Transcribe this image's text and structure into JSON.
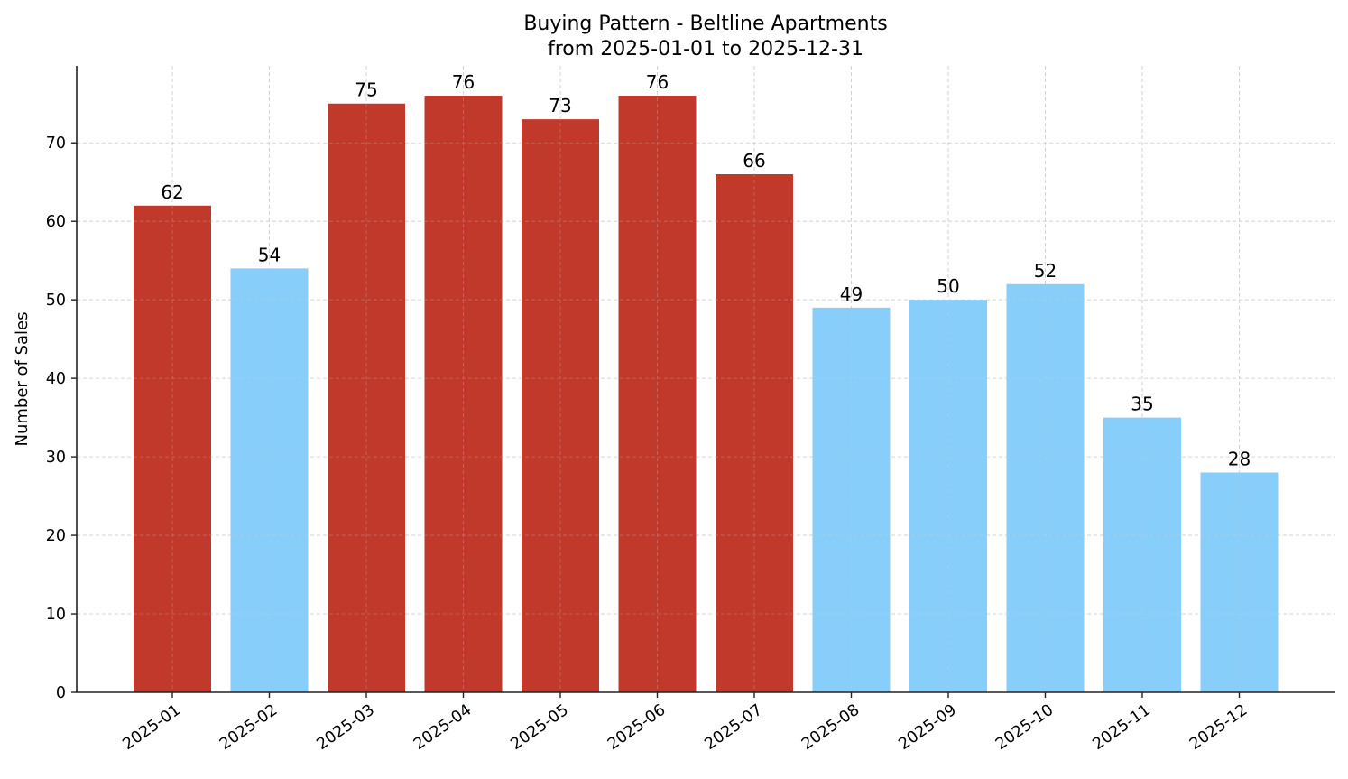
{
  "chart_data": {
    "type": "bar",
    "title": "Buying Pattern - Beltline Apartments",
    "subtitle": "from 2025-01-01 to 2025-12-31",
    "xlabel": "",
    "ylabel": "Number of Sales",
    "categories": [
      "2025-01",
      "2025-02",
      "2025-03",
      "2025-04",
      "2025-05",
      "2025-06",
      "2025-07",
      "2025-08",
      "2025-09",
      "2025-10",
      "2025-11",
      "2025-12"
    ],
    "values": [
      62,
      54,
      75,
      76,
      73,
      76,
      66,
      49,
      50,
      52,
      35,
      28
    ],
    "bar_colors": [
      "#c0392b",
      "#87cefa",
      "#c0392b",
      "#c0392b",
      "#c0392b",
      "#c0392b",
      "#c0392b",
      "#87cefa",
      "#87cefa",
      "#87cefa",
      "#87cefa",
      "#87cefa"
    ],
    "color_meaning": {
      "high": "#c0392b",
      "low": "#87cefa"
    },
    "ylim": [
      0,
      79.8
    ],
    "yticks": [
      0,
      10,
      20,
      30,
      40,
      50,
      60,
      70
    ],
    "grid": true,
    "grid_style": "dashed",
    "legend": null,
    "data_labels": true,
    "xtick_rotation": 35
  }
}
